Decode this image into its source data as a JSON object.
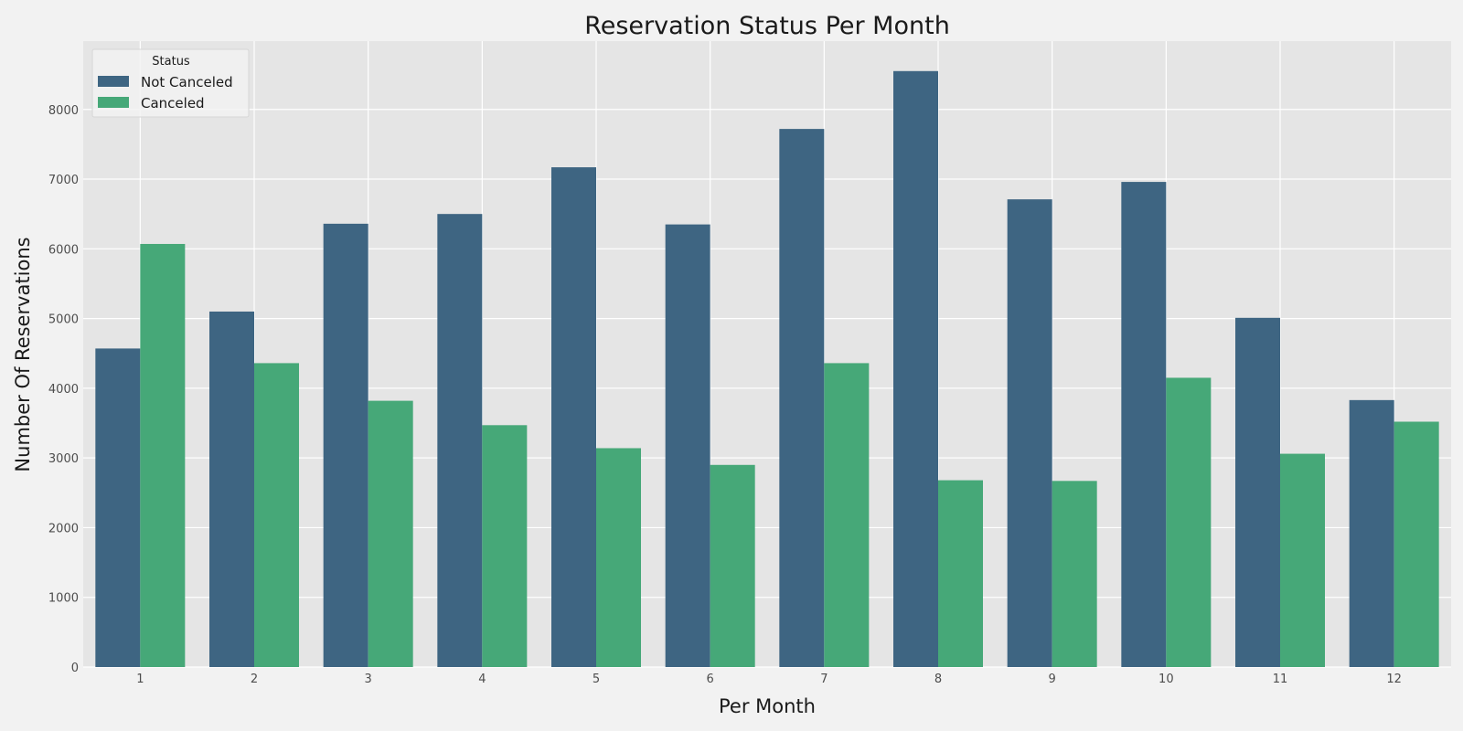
{
  "chart_data": {
    "type": "bar",
    "title": "Reservation Status Per Month",
    "xlabel": "Per Month",
    "ylabel": "Number Of Reservations",
    "categories": [
      "1",
      "2",
      "3",
      "4",
      "5",
      "6",
      "7",
      "8",
      "9",
      "10",
      "11",
      "12"
    ],
    "series": [
      {
        "name": "Not Canceled",
        "color": "#3e6582",
        "values": [
          4570,
          5100,
          6360,
          6500,
          7170,
          6350,
          7720,
          8550,
          6710,
          6960,
          5010,
          3830
        ]
      },
      {
        "name": "Canceled",
        "color": "#46a878",
        "values": [
          6070,
          4360,
          3820,
          3470,
          3140,
          2900,
          4360,
          2680,
          2670,
          4150,
          3060,
          3520
        ]
      }
    ],
    "yticks": [
      "0",
      "1000",
      "2000",
      "3000",
      "4000",
      "5000",
      "6000",
      "7000",
      "8000"
    ],
    "ylim": [
      0,
      8980
    ],
    "grid": true,
    "legend": {
      "title": "Status",
      "placement": "top-left"
    },
    "colors": {
      "background": "#f2f2f2",
      "plot_area": "#e5e5e5",
      "grid": "#ffffff"
    }
  }
}
